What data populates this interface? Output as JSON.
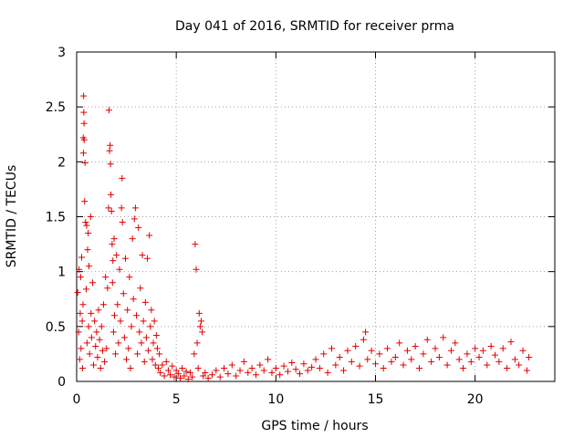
{
  "chart_data": {
    "type": "scatter",
    "title": "Day 041 of 2016, SRMTID for receiver prma",
    "xlabel": "GPS time / hours",
    "ylabel": "SRMTID / TECUs",
    "xlim": [
      0,
      24
    ],
    "ylim": [
      0,
      3
    ],
    "x_ticks": [
      0,
      5,
      10,
      15,
      20
    ],
    "y_ticks": [
      0,
      0.5,
      1,
      1.5,
      2,
      2.5,
      3
    ],
    "x_tick_labels": [
      "0",
      "5",
      "10",
      "15",
      "20"
    ],
    "y_tick_labels": [
      "0",
      "0.5",
      "1",
      "1.5",
      "2",
      "2.5",
      "3"
    ],
    "grid": true,
    "marker": "+",
    "color": "#e00000",
    "series": [
      {
        "name": "SRMTID",
        "points": [
          [
            0.05,
            0.81
          ],
          [
            0.1,
            0.45
          ],
          [
            0.12,
            1.02
          ],
          [
            0.15,
            0.2
          ],
          [
            0.18,
            0.62
          ],
          [
            0.2,
            0.95
          ],
          [
            0.22,
            0.3
          ],
          [
            0.25,
            1.13
          ],
          [
            0.28,
            0.55
          ],
          [
            0.3,
            0.12
          ],
          [
            0.32,
            0.7
          ],
          [
            0.33,
            2.22
          ],
          [
            0.34,
            2.08
          ],
          [
            0.35,
            2.6
          ],
          [
            0.36,
            2.45
          ],
          [
            0.37,
            2.35
          ],
          [
            0.38,
            2.2
          ],
          [
            0.4,
            1.64
          ],
          [
            0.42,
            1.99
          ],
          [
            0.45,
            1.45
          ],
          [
            0.48,
            0.84
          ],
          [
            0.5,
            1.42
          ],
          [
            0.52,
            0.35
          ],
          [
            0.55,
            1.2
          ],
          [
            0.58,
            1.35
          ],
          [
            0.6,
            0.5
          ],
          [
            0.62,
            1.05
          ],
          [
            0.65,
            0.25
          ],
          [
            0.7,
            1.5
          ],
          [
            0.72,
            0.62
          ],
          [
            0.75,
            0.4
          ],
          [
            0.8,
            0.9
          ],
          [
            0.85,
            0.15
          ],
          [
            0.9,
            0.55
          ],
          [
            0.95,
            0.32
          ],
          [
            1.0,
            0.45
          ],
          [
            1.05,
            0.22
          ],
          [
            1.1,
            0.65
          ],
          [
            1.15,
            0.38
          ],
          [
            1.2,
            0.12
          ],
          [
            1.25,
            0.5
          ],
          [
            1.3,
            0.28
          ],
          [
            1.35,
            0.7
          ],
          [
            1.4,
            0.18
          ],
          [
            1.45,
            0.95
          ],
          [
            1.5,
            0.3
          ],
          [
            1.55,
            0.85
          ],
          [
            1.6,
            1.58
          ],
          [
            1.62,
            2.47
          ],
          [
            1.65,
            2.1
          ],
          [
            1.68,
            2.15
          ],
          [
            1.7,
            1.98
          ],
          [
            1.72,
            1.7
          ],
          [
            1.75,
            1.55
          ],
          [
            1.78,
            1.25
          ],
          [
            1.8,
            0.9
          ],
          [
            1.82,
            1.1
          ],
          [
            1.85,
            0.45
          ],
          [
            1.88,
            1.3
          ],
          [
            1.9,
            0.6
          ],
          [
            1.95,
            0.25
          ],
          [
            2.0,
            1.15
          ],
          [
            2.05,
            0.7
          ],
          [
            2.1,
            0.35
          ],
          [
            2.15,
            1.02
          ],
          [
            2.2,
            0.55
          ],
          [
            2.25,
            1.58
          ],
          [
            2.28,
            1.85
          ],
          [
            2.3,
            1.45
          ],
          [
            2.35,
            0.8
          ],
          [
            2.4,
            0.4
          ],
          [
            2.45,
            1.12
          ],
          [
            2.5,
            0.2
          ],
          [
            2.55,
            0.65
          ],
          [
            2.6,
            0.3
          ],
          [
            2.65,
            0.95
          ],
          [
            2.7,
            0.12
          ],
          [
            2.75,
            0.5
          ],
          [
            2.8,
            1.3
          ],
          [
            2.85,
            0.75
          ],
          [
            2.9,
            1.48
          ],
          [
            2.95,
            1.58
          ],
          [
            3.0,
            0.6
          ],
          [
            3.05,
            0.25
          ],
          [
            3.1,
            1.4
          ],
          [
            3.15,
            0.45
          ],
          [
            3.2,
            0.85
          ],
          [
            3.25,
            0.35
          ],
          [
            3.3,
            1.15
          ],
          [
            3.35,
            0.55
          ],
          [
            3.4,
            0.18
          ],
          [
            3.45,
            0.72
          ],
          [
            3.5,
            0.4
          ],
          [
            3.55,
            1.12
          ],
          [
            3.6,
            0.28
          ],
          [
            3.65,
            1.33
          ],
          [
            3.7,
            0.5
          ],
          [
            3.75,
            0.65
          ],
          [
            3.8,
            0.2
          ],
          [
            3.85,
            0.35
          ],
          [
            3.9,
            0.55
          ],
          [
            3.95,
            0.15
          ],
          [
            4.0,
            0.42
          ],
          [
            4.05,
            0.3
          ],
          [
            4.1,
            0.12
          ],
          [
            4.15,
            0.25
          ],
          [
            4.2,
            0.08
          ],
          [
            4.3,
            0.15
          ],
          [
            4.4,
            0.05
          ],
          [
            4.5,
            0.18
          ],
          [
            4.6,
            0.1
          ],
          [
            4.7,
            0.06
          ],
          [
            4.8,
            0.14
          ],
          [
            4.9,
            0.04
          ],
          [
            5.0,
            0.1
          ],
          [
            5.1,
            0.07
          ],
          [
            5.2,
            0.03
          ],
          [
            5.3,
            0.12
          ],
          [
            5.4,
            0.05
          ],
          [
            5.5,
            0.09
          ],
          [
            5.6,
            0.02
          ],
          [
            5.7,
            0.08
          ],
          [
            5.8,
            0.04
          ],
          [
            5.9,
            0.25
          ],
          [
            5.95,
            1.25
          ],
          [
            6.0,
            1.02
          ],
          [
            6.05,
            0.35
          ],
          [
            6.1,
            0.12
          ],
          [
            6.15,
            0.62
          ],
          [
            6.2,
            0.5
          ],
          [
            6.25,
            0.55
          ],
          [
            6.3,
            0.45
          ],
          [
            6.35,
            0.05
          ],
          [
            6.45,
            0.08
          ],
          [
            6.6,
            0.03
          ],
          [
            6.8,
            0.06
          ],
          [
            7.0,
            0.1
          ],
          [
            7.2,
            0.04
          ],
          [
            7.4,
            0.12
          ],
          [
            7.6,
            0.07
          ],
          [
            7.8,
            0.15
          ],
          [
            8.0,
            0.05
          ],
          [
            8.2,
            0.1
          ],
          [
            8.4,
            0.18
          ],
          [
            8.6,
            0.08
          ],
          [
            8.8,
            0.12
          ],
          [
            9.0,
            0.06
          ],
          [
            9.2,
            0.15
          ],
          [
            9.4,
            0.1
          ],
          [
            9.6,
            0.2
          ],
          [
            9.8,
            0.08
          ],
          [
            10.0,
            0.12
          ],
          [
            10.2,
            0.06
          ],
          [
            10.4,
            0.14
          ],
          [
            10.6,
            0.09
          ],
          [
            10.8,
            0.17
          ],
          [
            11.0,
            0.11
          ],
          [
            11.2,
            0.07
          ],
          [
            11.4,
            0.16
          ],
          [
            11.6,
            0.1
          ],
          [
            11.8,
            0.13
          ],
          [
            12.0,
            0.2
          ],
          [
            12.2,
            0.12
          ],
          [
            12.4,
            0.25
          ],
          [
            12.6,
            0.08
          ],
          [
            12.8,
            0.3
          ],
          [
            13.0,
            0.15
          ],
          [
            13.2,
            0.22
          ],
          [
            13.4,
            0.1
          ],
          [
            13.6,
            0.28
          ],
          [
            13.8,
            0.18
          ],
          [
            14.0,
            0.32
          ],
          [
            14.2,
            0.14
          ],
          [
            14.4,
            0.38
          ],
          [
            14.5,
            0.45
          ],
          [
            14.6,
            0.2
          ],
          [
            14.8,
            0.28
          ],
          [
            15.0,
            0.16
          ],
          [
            15.2,
            0.25
          ],
          [
            15.4,
            0.12
          ],
          [
            15.6,
            0.3
          ],
          [
            15.8,
            0.18
          ],
          [
            16.0,
            0.22
          ],
          [
            16.2,
            0.35
          ],
          [
            16.4,
            0.15
          ],
          [
            16.6,
            0.28
          ],
          [
            16.8,
            0.2
          ],
          [
            17.0,
            0.32
          ],
          [
            17.2,
            0.12
          ],
          [
            17.4,
            0.25
          ],
          [
            17.6,
            0.38
          ],
          [
            17.8,
            0.18
          ],
          [
            18.0,
            0.3
          ],
          [
            18.2,
            0.22
          ],
          [
            18.4,
            0.4
          ],
          [
            18.6,
            0.15
          ],
          [
            18.8,
            0.28
          ],
          [
            19.0,
            0.35
          ],
          [
            19.2,
            0.2
          ],
          [
            19.4,
            0.12
          ],
          [
            19.6,
            0.25
          ],
          [
            19.8,
            0.18
          ],
          [
            20.0,
            0.3
          ],
          [
            20.2,
            0.22
          ],
          [
            20.4,
            0.28
          ],
          [
            20.6,
            0.15
          ],
          [
            20.8,
            0.32
          ],
          [
            21.0,
            0.24
          ],
          [
            21.2,
            0.18
          ],
          [
            21.4,
            0.3
          ],
          [
            21.6,
            0.12
          ],
          [
            21.8,
            0.36
          ],
          [
            22.0,
            0.2
          ],
          [
            22.2,
            0.15
          ],
          [
            22.4,
            0.28
          ],
          [
            22.6,
            0.1
          ],
          [
            22.7,
            0.22
          ]
        ]
      }
    ]
  }
}
